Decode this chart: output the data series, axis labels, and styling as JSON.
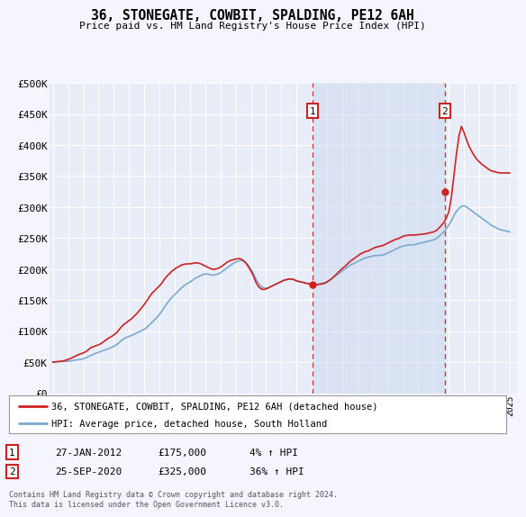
{
  "title": "36, STONEGATE, COWBIT, SPALDING, PE12 6AH",
  "subtitle": "Price paid vs. HM Land Registry's House Price Index (HPI)",
  "background_color": "#f5f5ff",
  "plot_bg_color": "#e8edf8",
  "grid_color": "#ffffff",
  "shade_color": "#d0dcf0",
  "ylim": [
    0,
    500000
  ],
  "yticks": [
    0,
    50000,
    100000,
    150000,
    200000,
    250000,
    300000,
    350000,
    400000,
    450000,
    500000
  ],
  "ytick_labels": [
    "£0",
    "£50K",
    "£100K",
    "£150K",
    "£200K",
    "£250K",
    "£300K",
    "£350K",
    "£400K",
    "£450K",
    "£500K"
  ],
  "xlim_start": 1994.8,
  "xlim_end": 2025.5,
  "hpi_color": "#7aaad0",
  "price_color": "#cc2222",
  "vline_color": "#cc3333",
  "legend_label_price": "36, STONEGATE, COWBIT, SPALDING, PE12 6AH (detached house)",
  "legend_label_hpi": "HPI: Average price, detached house, South Holland",
  "sale1_date": 2012.07,
  "sale1_price": 175000,
  "sale1_label": "1",
  "sale1_year_label": "27-JAN-2012",
  "sale1_price_label": "£175,000",
  "sale1_hpi_label": "4% ↑ HPI",
  "sale2_date": 2020.73,
  "sale2_price": 325000,
  "sale2_label": "2",
  "sale2_year_label": "25-SEP-2020",
  "sale2_price_label": "£325,000",
  "sale2_hpi_label": "36% ↑ HPI",
  "footer": "Contains HM Land Registry data © Crown copyright and database right 2024.\nThis data is licensed under the Open Government Licence v3.0.",
  "hpi_years": [
    1995.0,
    1995.17,
    1995.33,
    1995.5,
    1995.67,
    1995.83,
    1996.0,
    1996.17,
    1996.33,
    1996.5,
    1996.67,
    1996.83,
    1997.0,
    1997.17,
    1997.33,
    1997.5,
    1997.67,
    1997.83,
    1998.0,
    1998.17,
    1998.33,
    1998.5,
    1998.67,
    1998.83,
    1999.0,
    1999.17,
    1999.33,
    1999.5,
    1999.67,
    1999.83,
    2000.0,
    2000.17,
    2000.33,
    2000.5,
    2000.67,
    2000.83,
    2001.0,
    2001.17,
    2001.33,
    2001.5,
    2001.67,
    2001.83,
    2002.0,
    2002.17,
    2002.33,
    2002.5,
    2002.67,
    2002.83,
    2003.0,
    2003.17,
    2003.33,
    2003.5,
    2003.67,
    2003.83,
    2004.0,
    2004.17,
    2004.33,
    2004.5,
    2004.67,
    2004.83,
    2005.0,
    2005.17,
    2005.33,
    2005.5,
    2005.67,
    2005.83,
    2006.0,
    2006.17,
    2006.33,
    2006.5,
    2006.67,
    2006.83,
    2007.0,
    2007.17,
    2007.33,
    2007.5,
    2007.67,
    2007.83,
    2008.0,
    2008.17,
    2008.33,
    2008.5,
    2008.67,
    2008.83,
    2009.0,
    2009.17,
    2009.33,
    2009.5,
    2009.67,
    2009.83,
    2010.0,
    2010.17,
    2010.33,
    2010.5,
    2010.67,
    2010.83,
    2011.0,
    2011.17,
    2011.33,
    2011.5,
    2011.67,
    2011.83,
    2012.0,
    2012.17,
    2012.33,
    2012.5,
    2012.67,
    2012.83,
    2013.0,
    2013.17,
    2013.33,
    2013.5,
    2013.67,
    2013.83,
    2014.0,
    2014.17,
    2014.33,
    2014.5,
    2014.67,
    2014.83,
    2015.0,
    2015.17,
    2015.33,
    2015.5,
    2015.67,
    2015.83,
    2016.0,
    2016.17,
    2016.33,
    2016.5,
    2016.67,
    2016.83,
    2017.0,
    2017.17,
    2017.33,
    2017.5,
    2017.67,
    2017.83,
    2018.0,
    2018.17,
    2018.33,
    2018.5,
    2018.67,
    2018.83,
    2019.0,
    2019.17,
    2019.33,
    2019.5,
    2019.67,
    2019.83,
    2020.0,
    2020.17,
    2020.33,
    2020.5,
    2020.67,
    2020.83,
    2021.0,
    2021.17,
    2021.33,
    2021.5,
    2021.67,
    2021.83,
    2022.0,
    2022.17,
    2022.33,
    2022.5,
    2022.67,
    2022.83,
    2023.0,
    2023.17,
    2023.33,
    2023.5,
    2023.67,
    2023.83,
    2024.0,
    2024.17,
    2024.33,
    2024.5,
    2024.67,
    2024.83,
    2025.0
  ],
  "hpi_values": [
    50000,
    50200,
    50500,
    50800,
    51000,
    51200,
    51500,
    52000,
    52800,
    53500,
    54000,
    54500,
    55500,
    57000,
    59000,
    61000,
    63000,
    64500,
    66000,
    67500,
    69000,
    70500,
    72000,
    73500,
    75500,
    78000,
    81000,
    85000,
    88000,
    90000,
    91500,
    93000,
    95000,
    97000,
    99000,
    101000,
    103000,
    106000,
    110000,
    114000,
    118000,
    122000,
    127000,
    133000,
    139000,
    145000,
    150000,
    155000,
    159000,
    163000,
    167000,
    171000,
    174000,
    177000,
    179000,
    182000,
    185000,
    187000,
    189000,
    191000,
    192000,
    192000,
    191000,
    190000,
    191000,
    192000,
    194000,
    197000,
    200000,
    203000,
    206000,
    209000,
    211000,
    213000,
    214000,
    213000,
    210000,
    206000,
    200000,
    193000,
    184000,
    177000,
    172000,
    170000,
    169000,
    170000,
    172000,
    174000,
    176000,
    178000,
    180000,
    182000,
    183000,
    184000,
    184000,
    183000,
    181000,
    180000,
    179000,
    178000,
    177000,
    176000,
    175000,
    175000,
    175000,
    176000,
    177000,
    178000,
    180000,
    182000,
    185000,
    188000,
    191000,
    194000,
    197000,
    200000,
    203000,
    206000,
    208000,
    210000,
    212000,
    214000,
    216000,
    218000,
    219000,
    220000,
    221000,
    222000,
    222000,
    222000,
    223000,
    224000,
    226000,
    228000,
    230000,
    232000,
    234000,
    236000,
    237000,
    238000,
    239000,
    239000,
    239000,
    240000,
    241000,
    242000,
    243000,
    244000,
    245000,
    246000,
    247000,
    249000,
    252000,
    256000,
    260000,
    265000,
    271000,
    278000,
    286000,
    293000,
    298000,
    301000,
    302000,
    300000,
    297000,
    294000,
    291000,
    288000,
    285000,
    282000,
    279000,
    276000,
    273000,
    270000,
    268000,
    266000,
    264000,
    263000,
    262000,
    261000,
    260000
  ],
  "price_years": [
    1995.0,
    1995.17,
    1995.33,
    1995.5,
    1995.67,
    1995.83,
    1996.0,
    1996.17,
    1996.33,
    1996.5,
    1996.67,
    1996.83,
    1997.0,
    1997.17,
    1997.33,
    1997.5,
    1997.67,
    1997.83,
    1998.0,
    1998.17,
    1998.33,
    1998.5,
    1998.67,
    1998.83,
    1999.0,
    1999.17,
    1999.33,
    1999.5,
    1999.67,
    1999.83,
    2000.0,
    2000.17,
    2000.33,
    2000.5,
    2000.67,
    2000.83,
    2001.0,
    2001.17,
    2001.33,
    2001.5,
    2001.67,
    2001.83,
    2002.0,
    2002.17,
    2002.33,
    2002.5,
    2002.67,
    2002.83,
    2003.0,
    2003.17,
    2003.33,
    2003.5,
    2003.67,
    2003.83,
    2004.0,
    2004.17,
    2004.33,
    2004.5,
    2004.67,
    2004.83,
    2005.0,
    2005.17,
    2005.33,
    2005.5,
    2005.67,
    2005.83,
    2006.0,
    2006.17,
    2006.33,
    2006.5,
    2006.67,
    2006.83,
    2007.0,
    2007.17,
    2007.33,
    2007.5,
    2007.67,
    2007.83,
    2008.0,
    2008.17,
    2008.33,
    2008.5,
    2008.67,
    2008.83,
    2009.0,
    2009.17,
    2009.33,
    2009.5,
    2009.67,
    2009.83,
    2010.0,
    2010.17,
    2010.33,
    2010.5,
    2010.67,
    2010.83,
    2011.0,
    2011.17,
    2011.33,
    2011.5,
    2011.67,
    2011.83,
    2012.0,
    2012.17,
    2012.33,
    2012.5,
    2012.67,
    2012.83,
    2013.0,
    2013.17,
    2013.33,
    2013.5,
    2013.67,
    2013.83,
    2014.0,
    2014.17,
    2014.33,
    2014.5,
    2014.67,
    2014.83,
    2015.0,
    2015.17,
    2015.33,
    2015.5,
    2015.67,
    2015.83,
    2016.0,
    2016.17,
    2016.33,
    2016.5,
    2016.67,
    2016.83,
    2017.0,
    2017.17,
    2017.33,
    2017.5,
    2017.67,
    2017.83,
    2018.0,
    2018.17,
    2018.33,
    2018.5,
    2018.67,
    2018.83,
    2019.0,
    2019.17,
    2019.33,
    2019.5,
    2019.67,
    2019.83,
    2020.0,
    2020.17,
    2020.33,
    2020.5,
    2020.67,
    2020.83,
    2021.0,
    2021.17,
    2021.33,
    2021.5,
    2021.67,
    2021.83,
    2022.0,
    2022.17,
    2022.33,
    2022.5,
    2022.67,
    2022.83,
    2023.0,
    2023.17,
    2023.33,
    2023.5,
    2023.67,
    2023.83,
    2024.0,
    2024.17,
    2024.33,
    2024.5,
    2024.67,
    2024.83,
    2025.0
  ],
  "price_values": [
    50000,
    50500,
    51000,
    51500,
    52000,
    53000,
    54500,
    56000,
    58000,
    60000,
    62000,
    63500,
    65000,
    67000,
    70000,
    73500,
    75000,
    76500,
    78000,
    80000,
    83000,
    86000,
    89000,
    91000,
    94000,
    97000,
    102000,
    107000,
    111000,
    114000,
    117000,
    120000,
    124000,
    128000,
    133000,
    138000,
    143000,
    149000,
    155000,
    161000,
    165000,
    169000,
    173000,
    178000,
    184000,
    189000,
    193000,
    197000,
    200000,
    203000,
    205000,
    207000,
    208000,
    208500,
    208500,
    209000,
    210000,
    210000,
    209000,
    207000,
    205000,
    203000,
    201000,
    199500,
    200000,
    201000,
    203000,
    206000,
    209000,
    212000,
    214000,
    215000,
    216000,
    217000,
    216500,
    214000,
    210000,
    204000,
    197000,
    189000,
    179000,
    172000,
    168000,
    167000,
    168000,
    170000,
    172000,
    174000,
    176000,
    178000,
    180000,
    182000,
    183000,
    184000,
    184000,
    183000,
    181000,
    180000,
    179000,
    178000,
    177000,
    176500,
    176000,
    175500,
    175000,
    175500,
    176000,
    177000,
    179000,
    182000,
    185000,
    189000,
    193000,
    197000,
    201000,
    204000,
    208000,
    212000,
    215000,
    218000,
    221000,
    224000,
    226000,
    228000,
    229000,
    231000,
    233000,
    235000,
    236000,
    237000,
    238000,
    240000,
    242000,
    244000,
    246000,
    248000,
    249000,
    251000,
    253000,
    254000,
    254500,
    255000,
    255000,
    255000,
    255500,
    256000,
    256500,
    257000,
    258000,
    259000,
    260000,
    262000,
    265500,
    270000,
    275000,
    282000,
    292000,
    316000,
    350000,
    385000,
    415000,
    430000,
    420000,
    408000,
    398000,
    390000,
    383000,
    377000,
    373000,
    369000,
    366000,
    363000,
    360000,
    358000,
    357000,
    356000,
    355000,
    355000,
    355000,
    355000,
    355000
  ]
}
